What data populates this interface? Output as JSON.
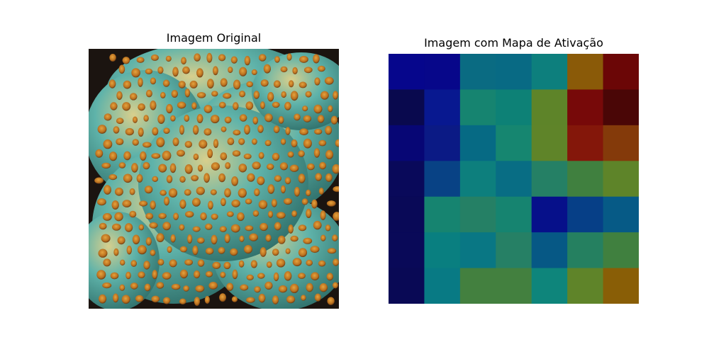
{
  "figure": {
    "left_title": "Imagem Original",
    "right_title": "Imagem com Mapa de Ativação"
  },
  "chart_data": [
    {
      "type": "image",
      "title": "Imagem Original",
      "subject": "teal coral-like sculpted surface with many small golden-orange circular holes on a dark background",
      "colors": {
        "background": "#1b1410",
        "surface": "#5fb3aa",
        "highlight": "#d8cf8c",
        "holes": "#e6a33e",
        "hole_shadow": "#6b3a12"
      }
    },
    {
      "type": "heatmap",
      "title": "Imagem com Mapa de Ativação",
      "rows": 7,
      "cols": 7,
      "grid": false,
      "cells": [
        [
          "#06068c",
          "#07078a",
          "#0a6b82",
          "#086a84",
          "#0d7f7d",
          "#8a5a08",
          "#6b0606"
        ],
        [
          "#09094e",
          "#081890",
          "#168470",
          "#0d8176",
          "#5e8429",
          "#770909",
          "#4a0606"
        ],
        [
          "#070675",
          "#0b1a85",
          "#066a84",
          "#168670",
          "#5f8429",
          "#84170a",
          "#843a0a"
        ],
        [
          "#09095a",
          "#084285",
          "#0d7f7d",
          "#086d84",
          "#258065",
          "#40803f",
          "#5e8429"
        ],
        [
          "#090957",
          "#168470",
          "#258065",
          "#168470",
          "#06108a",
          "#063f87",
          "#065a86"
        ],
        [
          "#090958",
          "#097f80",
          "#097784",
          "#268065",
          "#065885",
          "#258060",
          "#40803f"
        ],
        [
          "#090955",
          "#087a84",
          "#43803f",
          "#43803f",
          "#0e857b",
          "#5f8429",
          "#895e06"
        ]
      ]
    }
  ]
}
